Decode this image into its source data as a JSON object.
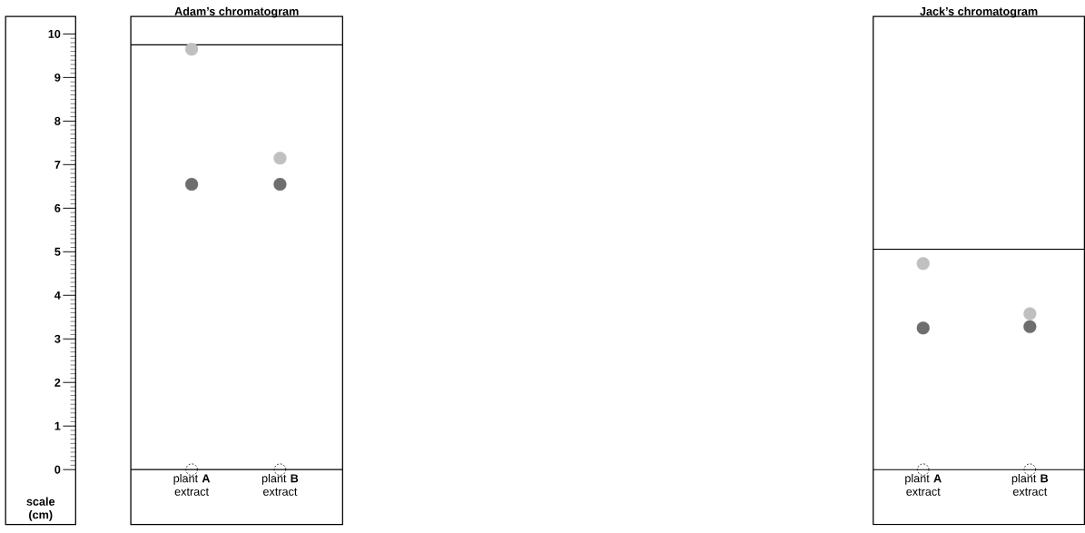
{
  "chart_data": [
    {
      "type": "scatter",
      "title": "Adam’s chromatogram",
      "ylabel": "**scale (cm)**",
      "categories": [
        "plant **A** extract",
        "plant **B** extract"
      ],
      "marker": "circle",
      "series": [
        {
          "color": "#c0c0c0",
          "values": [
            9.65,
            7.15
          ]
        },
        {
          "color": "#6e6e6e",
          "values": [
            6.55,
            6.55
          ]
        },
        {
          "color": "#000000",
          "values": [
            0,
            0
          ],
          "line_style": "dashed"
        }
      ],
      "ylim": [
        -1.26,
        10.4
      ],
      "yticks": [
        0,
        1,
        2,
        3,
        4,
        5,
        6,
        7,
        8,
        9,
        10
      ],
      "ref_lines": [
        {
          "axis": "y",
          "value": 9.75
        },
        {
          "axis": "y",
          "value": 0
        }
      ]
    },
    {
      "type": "scatter",
      "title": "Jack’s chromatogram",
      "categories": [
        "plant **A** extract",
        "plant **B** extract"
      ],
      "marker": "circle",
      "tick_labels": "x",
      "series": [
        {
          "color": "#c0c0c0",
          "values": [
            4.73,
            3.58
          ]
        },
        {
          "color": "#6e6e6e",
          "values": [
            3.25,
            3.28
          ]
        },
        {
          "color": "#000000",
          "values": [
            0,
            0
          ],
          "line_style": "dashed"
        }
      ],
      "ylim": [
        -1.26,
        10.4
      ],
      "ref_lines": [
        {
          "axis": "y",
          "value": 5.06
        },
        {
          "axis": "y",
          "value": 0
        }
      ]
    }
  ]
}
